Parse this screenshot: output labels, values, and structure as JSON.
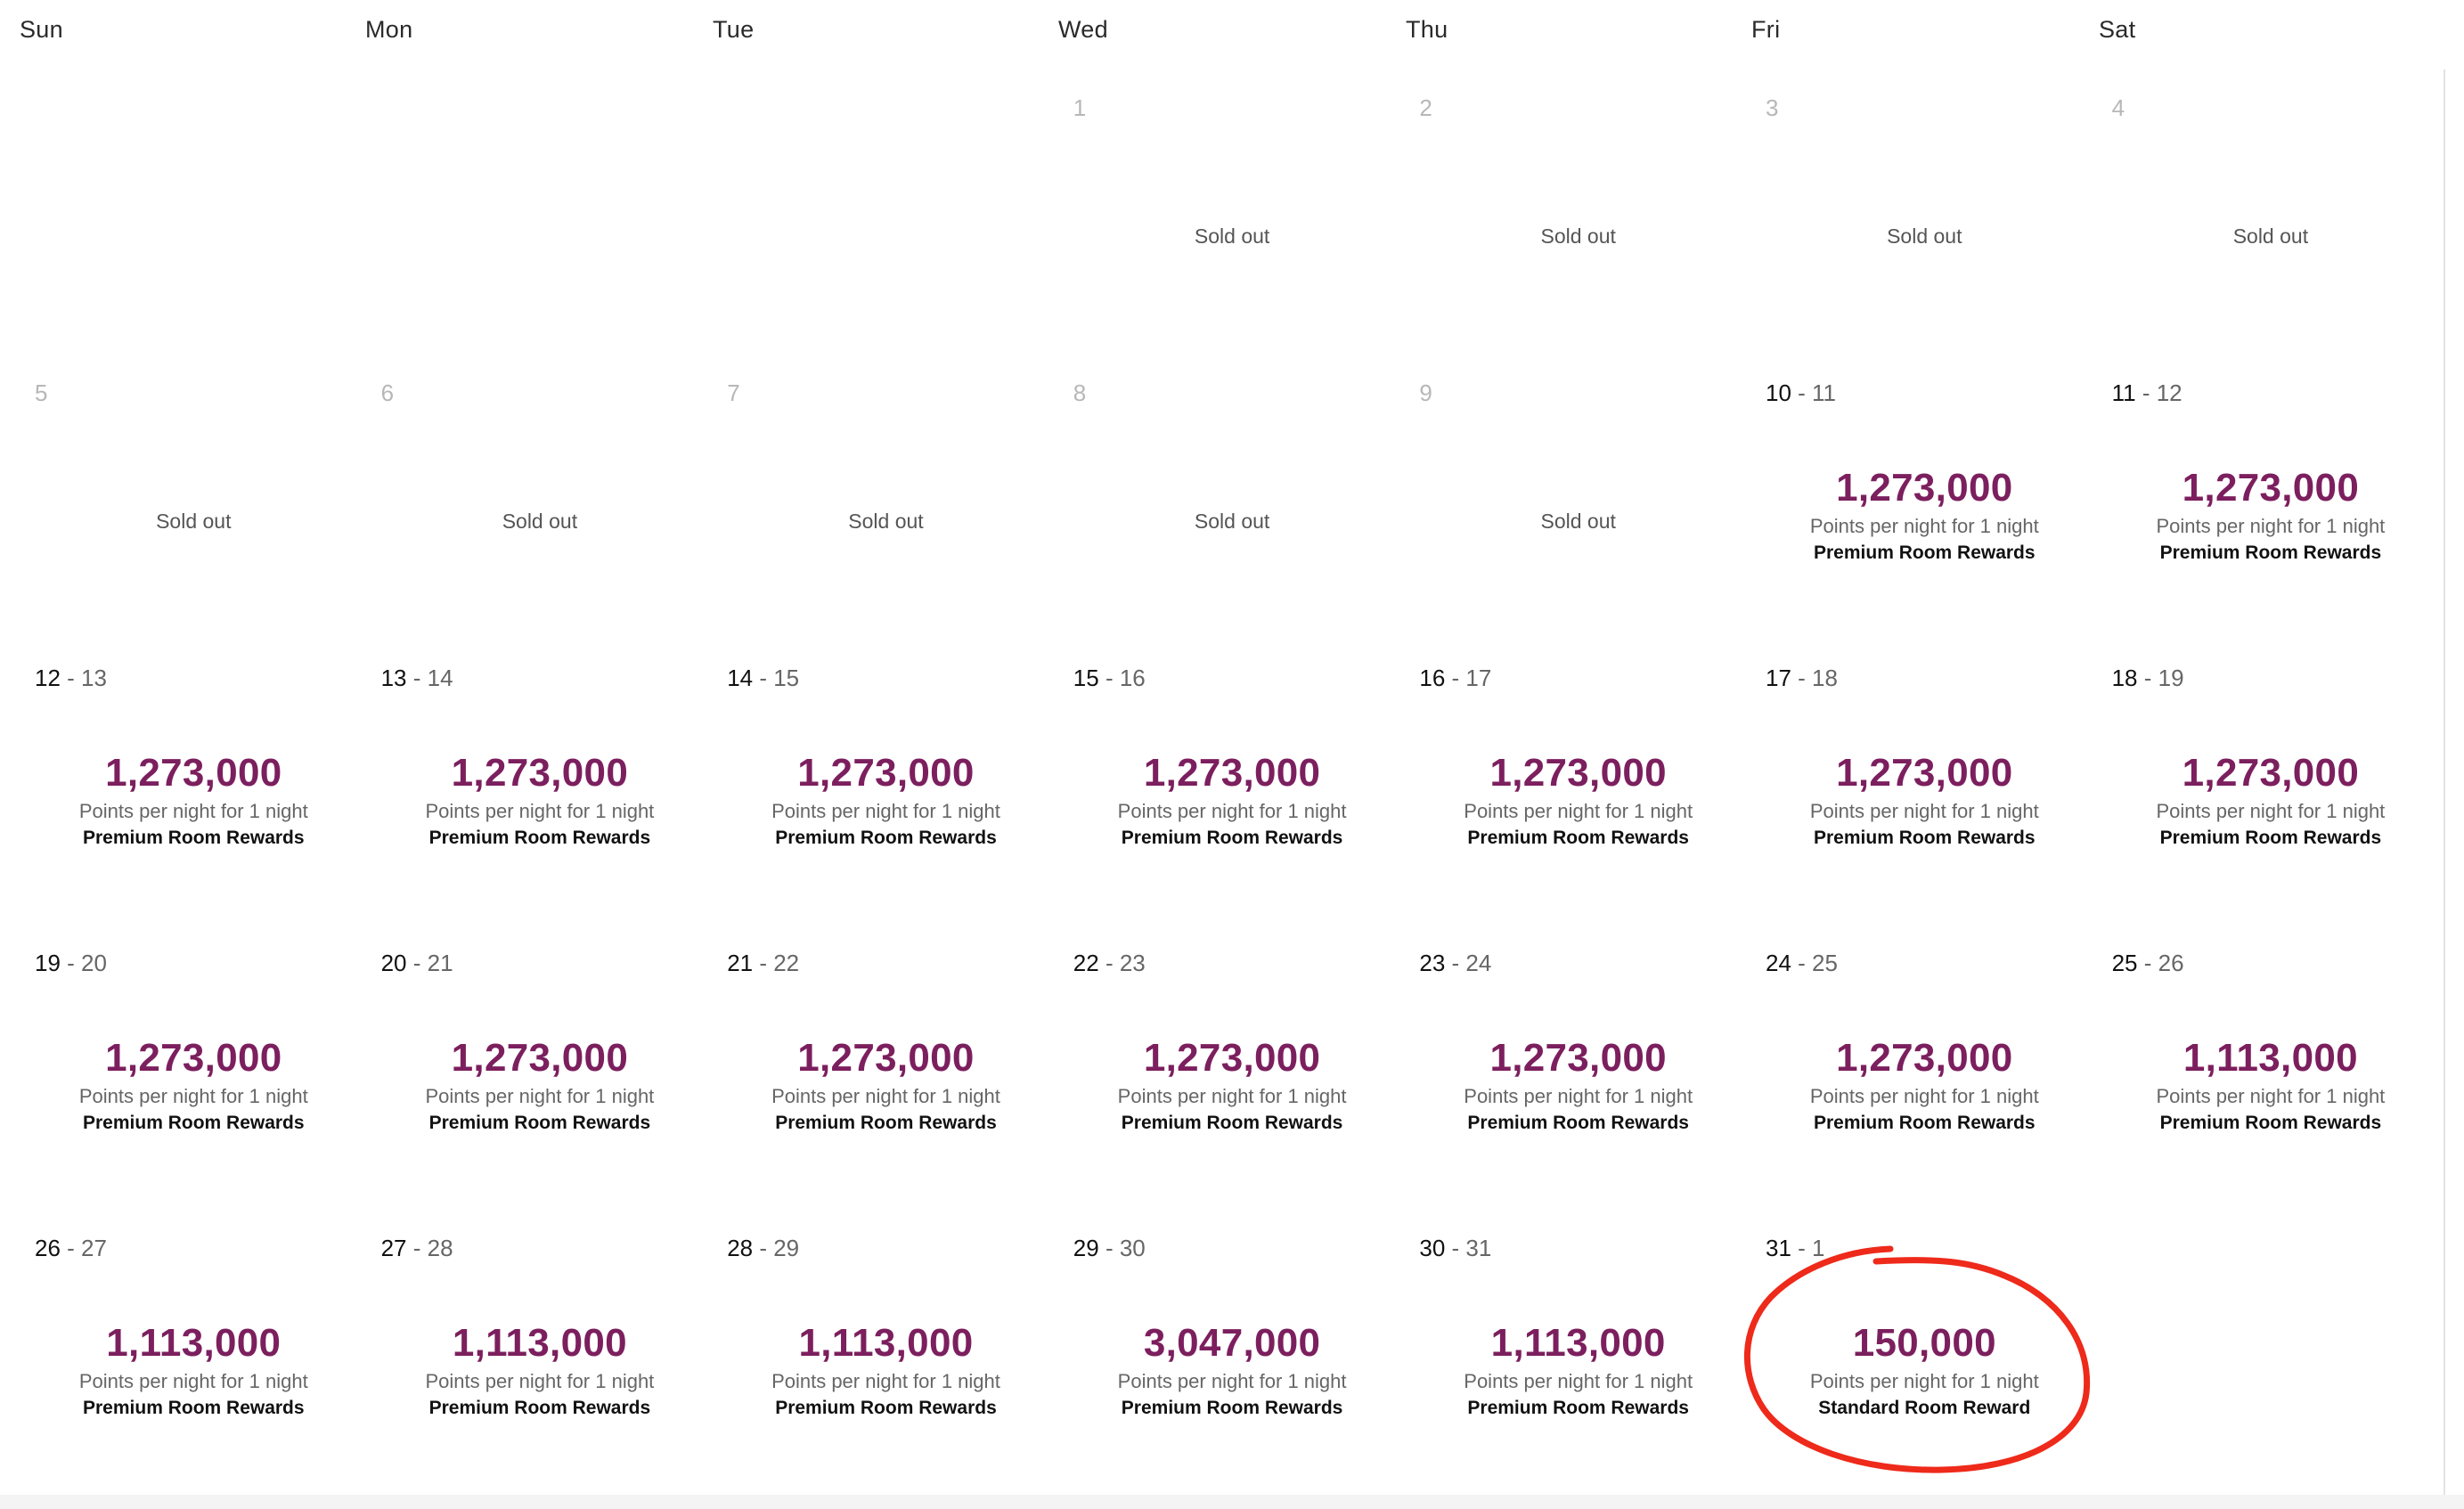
{
  "weekdays": [
    "Sun",
    "Mon",
    "Tue",
    "Wed",
    "Thu",
    "Fri",
    "Sat"
  ],
  "labels": {
    "sold_out": "Sold out",
    "points_per_night": "Points per night for 1 night",
    "premium": "Premium Room Rewards",
    "standard": "Standard Room Reward"
  },
  "cells": [
    {
      "empty": true
    },
    {
      "empty": true
    },
    {
      "empty": true
    },
    {
      "start": "1",
      "status": "sold_out"
    },
    {
      "start": "2",
      "status": "sold_out"
    },
    {
      "start": "3",
      "status": "sold_out"
    },
    {
      "start": "4",
      "status": "sold_out"
    },
    {
      "start": "5",
      "status": "sold_out"
    },
    {
      "start": "6",
      "status": "sold_out"
    },
    {
      "start": "7",
      "status": "sold_out"
    },
    {
      "start": "8",
      "status": "sold_out"
    },
    {
      "start": "9",
      "status": "sold_out"
    },
    {
      "start": "10",
      "end": "11",
      "points": "1,273,000",
      "reward": "premium"
    },
    {
      "start": "11",
      "end": "12",
      "points": "1,273,000",
      "reward": "premium"
    },
    {
      "start": "12",
      "end": "13",
      "points": "1,273,000",
      "reward": "premium"
    },
    {
      "start": "13",
      "end": "14",
      "points": "1,273,000",
      "reward": "premium"
    },
    {
      "start": "14",
      "end": "15",
      "points": "1,273,000",
      "reward": "premium"
    },
    {
      "start": "15",
      "end": "16",
      "points": "1,273,000",
      "reward": "premium"
    },
    {
      "start": "16",
      "end": "17",
      "points": "1,273,000",
      "reward": "premium"
    },
    {
      "start": "17",
      "end": "18",
      "points": "1,273,000",
      "reward": "premium"
    },
    {
      "start": "18",
      "end": "19",
      "points": "1,273,000",
      "reward": "premium"
    },
    {
      "start": "19",
      "end": "20",
      "points": "1,273,000",
      "reward": "premium"
    },
    {
      "start": "20",
      "end": "21",
      "points": "1,273,000",
      "reward": "premium"
    },
    {
      "start": "21",
      "end": "22",
      "points": "1,273,000",
      "reward": "premium"
    },
    {
      "start": "22",
      "end": "23",
      "points": "1,273,000",
      "reward": "premium"
    },
    {
      "start": "23",
      "end": "24",
      "points": "1,273,000",
      "reward": "premium"
    },
    {
      "start": "24",
      "end": "25",
      "points": "1,273,000",
      "reward": "premium"
    },
    {
      "start": "25",
      "end": "26",
      "points": "1,113,000",
      "reward": "premium"
    },
    {
      "start": "26",
      "end": "27",
      "points": "1,113,000",
      "reward": "premium"
    },
    {
      "start": "27",
      "end": "28",
      "points": "1,113,000",
      "reward": "premium"
    },
    {
      "start": "28",
      "end": "29",
      "points": "1,113,000",
      "reward": "premium"
    },
    {
      "start": "29",
      "end": "30",
      "points": "3,047,000",
      "reward": "premium"
    },
    {
      "start": "30",
      "end": "31",
      "points": "1,113,000",
      "reward": "premium"
    },
    {
      "start": "31",
      "end": "1",
      "points": "150,000",
      "reward": "standard",
      "highlighted": true
    },
    {
      "empty": true
    }
  ],
  "colors": {
    "points": "#7c1f5e",
    "annotation": "#ee2a1b",
    "border": "#e3e3e3"
  }
}
